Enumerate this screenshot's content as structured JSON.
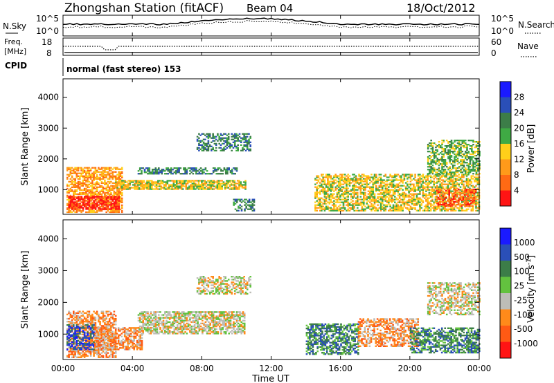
{
  "header": {
    "station": "Zhongshan Station (fitACF)",
    "beam": "Beam 04",
    "date": "18/Oct/2012"
  },
  "panels": {
    "nsky_label": "N.Sky",
    "nsearch_label": "N.Search",
    "noise_ticks": [
      "10^5",
      "10^0"
    ],
    "freq_label_1": "Freq.",
    "freq_label_2": "[MHz]",
    "freq_ticks": [
      "18",
      "8"
    ],
    "nave_label": "Nave",
    "nave_ticks": [
      "60",
      "0"
    ],
    "cpid_label": "CPID",
    "cpid_value": "normal (fast stereo) 153"
  },
  "colors": {
    "power_scale": [
      "#1a1aff",
      "#2a4fb8",
      "#3c7d48",
      "#3faa44",
      "#ffcf1a",
      "#ff9a1a",
      "#ff6a14",
      "#ff1414"
    ],
    "velocity_scale": [
      "#1a1aff",
      "#2a4fb8",
      "#3c7d48",
      "#63c23f",
      "#bdbdb7",
      "#ff8a1a",
      "#ff5a14",
      "#ff1414"
    ]
  },
  "chart_data": [
    {
      "type": "line",
      "name": "noise-frequency-panels",
      "xlabel": "",
      "x_range": [
        "00:00",
        "24:00"
      ],
      "series": []
    },
    {
      "type": "heatmap",
      "name": "power",
      "ylabel": "Slant Range [km]",
      "yticks": [
        "1000",
        "2000",
        "3000",
        "4000"
      ],
      "ylim": [
        200,
        4600
      ],
      "colorbar": {
        "label": "Power [dB]",
        "ticks": [
          "4",
          "8",
          "12",
          "16",
          "20",
          "24",
          "28"
        ]
      },
      "regions": [
        {
          "t0": 0.2,
          "t1": 3.4,
          "r0": 250,
          "r1": 1700,
          "level": 5,
          "density": 0.65
        },
        {
          "t0": 0.3,
          "t1": 3.2,
          "r0": 350,
          "r1": 800,
          "level": 7,
          "density": 0.7
        },
        {
          "t0": 3.0,
          "t1": 10.5,
          "r0": 1000,
          "r1": 1300,
          "level": 4,
          "density": 0.8
        },
        {
          "t0": 4.3,
          "t1": 10.0,
          "r0": 1500,
          "r1": 1700,
          "level": 2,
          "density": 0.55
        },
        {
          "t0": 7.7,
          "t1": 10.8,
          "r0": 2250,
          "r1": 2800,
          "level": 2,
          "density": 0.5
        },
        {
          "t0": 9.8,
          "t1": 11.0,
          "r0": 300,
          "r1": 700,
          "level": 2,
          "density": 0.45
        },
        {
          "t0": 14.5,
          "t1": 24.0,
          "r0": 300,
          "r1": 1500,
          "level": 4,
          "density": 0.6
        },
        {
          "t0": 21.5,
          "t1": 23.8,
          "r0": 450,
          "r1": 1000,
          "level": 6,
          "density": 0.55
        },
        {
          "t0": 21.0,
          "t1": 24.0,
          "r0": 1500,
          "r1": 2600,
          "level": 3,
          "density": 0.55
        }
      ]
    },
    {
      "type": "heatmap",
      "name": "velocity",
      "ylabel": "Slant Range [km]",
      "yticks": [
        "1000",
        "2000",
        "3000",
        "4000"
      ],
      "ylim": [
        200,
        4600
      ],
      "xlabel": "Time UT",
      "xticks": [
        "00:00",
        "04:00",
        "08:00",
        "12:00",
        "16:00",
        "20:00",
        "00:00"
      ],
      "colorbar": {
        "label": "Velocity [m s-1]",
        "ticks": [
          "1000",
          "500",
          "100",
          "25",
          "-25",
          "-100",
          "-500",
          "-1000"
        ]
      },
      "regions": [
        {
          "t0": 0.2,
          "t1": 3.0,
          "r0": 250,
          "r1": 1700,
          "level": 5,
          "density": 0.6
        },
        {
          "t0": 0.2,
          "t1": 1.8,
          "r0": 500,
          "r1": 1300,
          "level": 1,
          "density": 0.55
        },
        {
          "t0": 1.8,
          "t1": 4.5,
          "r0": 500,
          "r1": 1200,
          "level": 5,
          "density": 0.6
        },
        {
          "t0": 4.3,
          "t1": 10.5,
          "r0": 1000,
          "r1": 1700,
          "level": 4,
          "density": 0.65
        },
        {
          "t0": 7.7,
          "t1": 10.8,
          "r0": 2250,
          "r1": 2800,
          "level": 4,
          "density": 0.5
        },
        {
          "t0": 14.0,
          "t1": 17.0,
          "r0": 350,
          "r1": 1300,
          "level": 2,
          "density": 0.6
        },
        {
          "t0": 17.0,
          "t1": 20.5,
          "r0": 600,
          "r1": 1500,
          "level": 5,
          "density": 0.55
        },
        {
          "t0": 20.0,
          "t1": 24.0,
          "r0": 400,
          "r1": 1200,
          "level": 2,
          "density": 0.6
        },
        {
          "t0": 21.0,
          "t1": 24.0,
          "r0": 1600,
          "r1": 2600,
          "level": 4,
          "density": 0.5
        }
      ]
    }
  ]
}
